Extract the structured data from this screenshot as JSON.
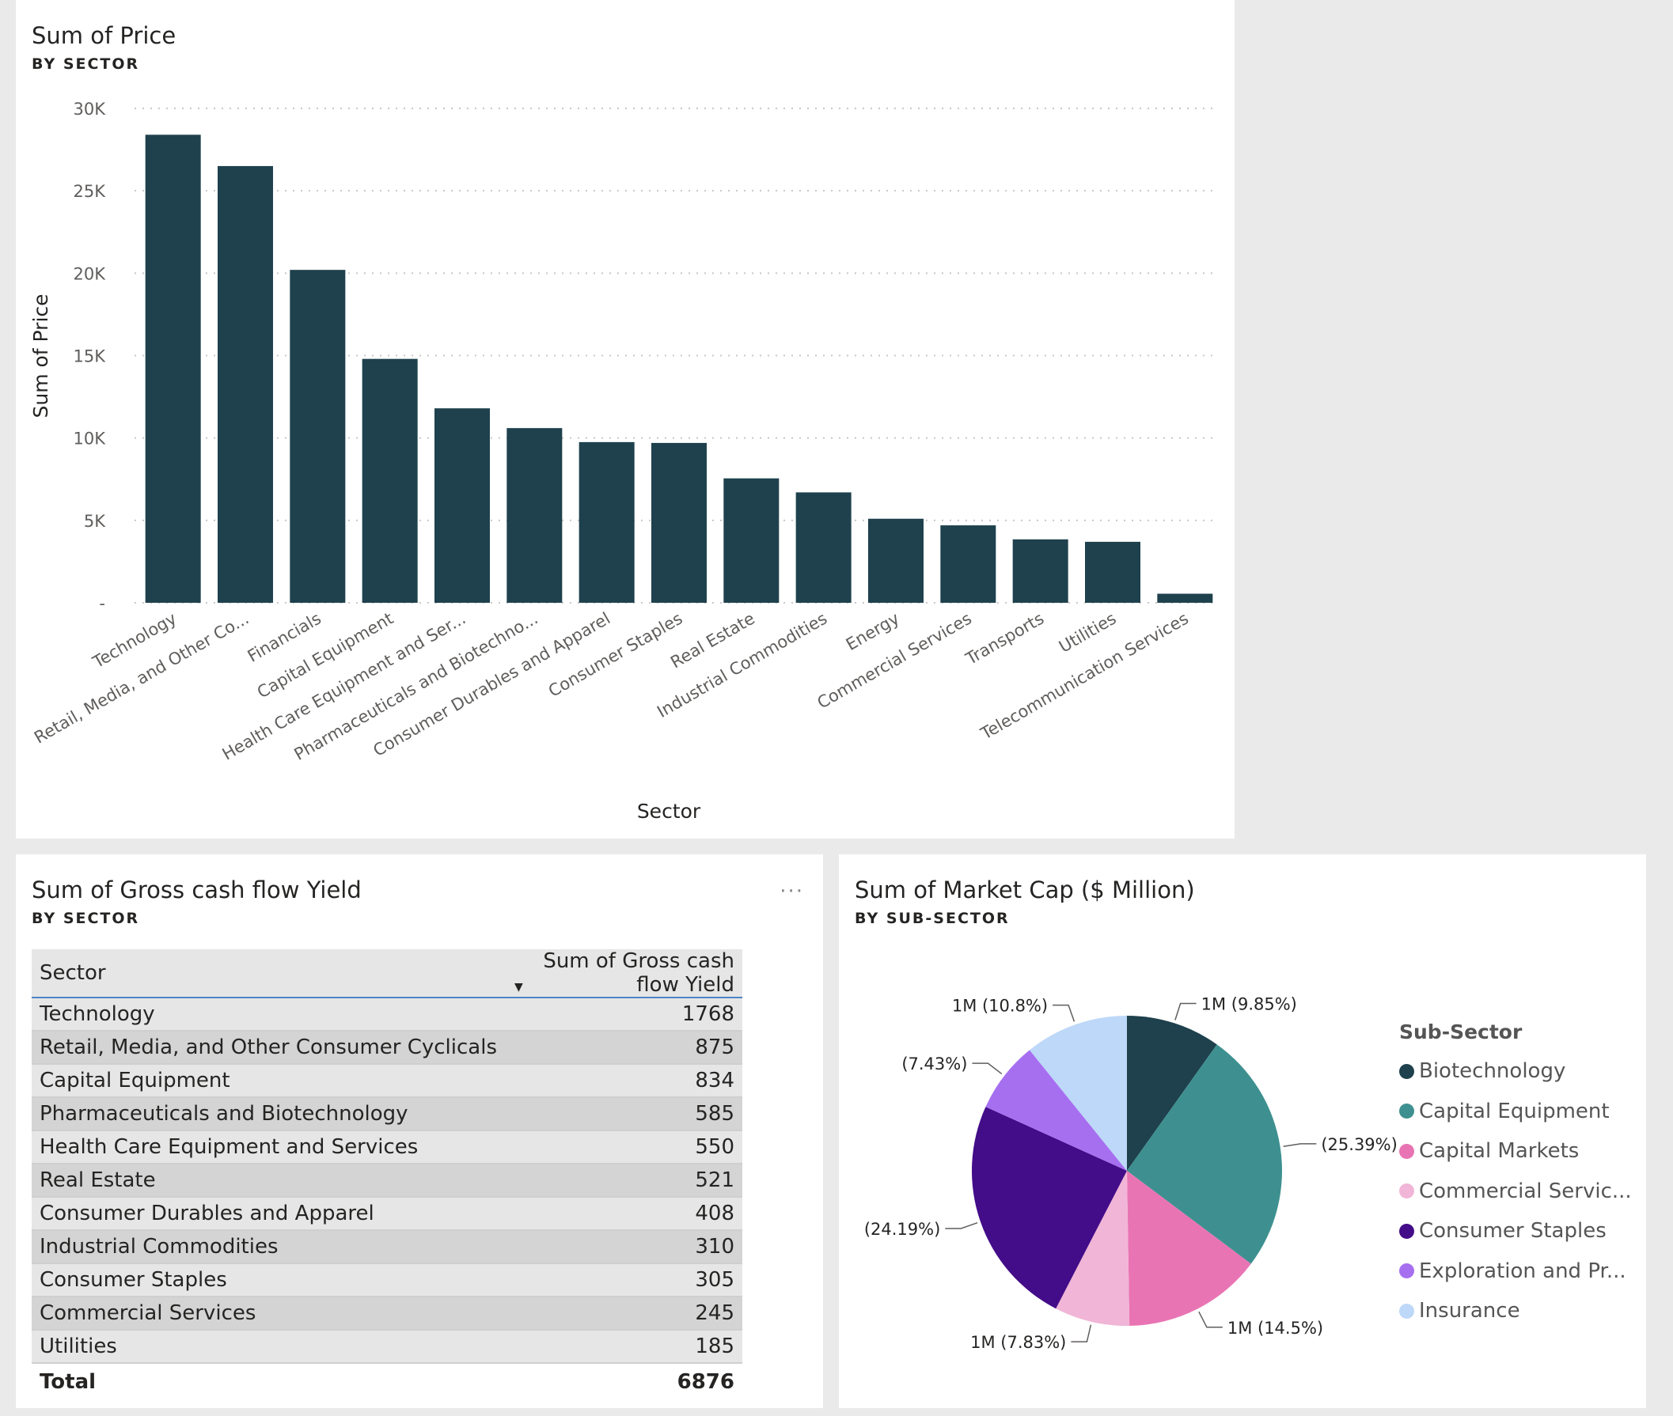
{
  "bar_card": {
    "title": "Sum of Price",
    "subtitle": "BY SECTOR"
  },
  "table_card": {
    "title": "Sum of Gross cash flow Yield",
    "subtitle": "BY SECTOR",
    "more_label": "···",
    "columns": [
      "Sector",
      "Sum of Gross cash flow Yield"
    ],
    "rows": [
      {
        "sector": "Technology",
        "value": "1768"
      },
      {
        "sector": "Retail, Media, and Other Consumer Cyclicals",
        "value": "875"
      },
      {
        "sector": "Capital Equipment",
        "value": "834"
      },
      {
        "sector": "Pharmaceuticals and Biotechnology",
        "value": "585"
      },
      {
        "sector": "Health Care Equipment and Services",
        "value": "550"
      },
      {
        "sector": "Real Estate",
        "value": "521"
      },
      {
        "sector": "Consumer Durables and Apparel",
        "value": "408"
      },
      {
        "sector": "Industrial Commodities",
        "value": "310"
      },
      {
        "sector": "Consumer Staples",
        "value": "305"
      },
      {
        "sector": "Commercial Services",
        "value": "245"
      },
      {
        "sector": "Utilities",
        "value": "185"
      }
    ],
    "total_label": "Total",
    "total_value": "6876"
  },
  "pie_card": {
    "title": "Sum of Market Cap ($ Million)",
    "subtitle": "BY SUB-SECTOR"
  },
  "chart_data": [
    {
      "type": "bar",
      "title": "Sum of Price",
      "subtitle": "BY SECTOR",
      "xlabel": "Sector",
      "ylabel": "Sum of Price",
      "ylim": [
        0,
        30000
      ],
      "yticks": [
        0,
        5000,
        10000,
        15000,
        20000,
        25000,
        30000
      ],
      "ytick_labels": [
        "-",
        "5K",
        "10K",
        "15K",
        "20K",
        "25K",
        "30K"
      ],
      "grid": true,
      "bar_color": "#1e414d",
      "categories": [
        "Technology",
        "Retail, Media, and Other Co...",
        "Financials",
        "Capital Equipment",
        "Health Care Equipment and Ser...",
        "Pharmaceuticals and Biotechno...",
        "Consumer Durables and Apparel",
        "Consumer Staples",
        "Real Estate",
        "Industrial Commodities",
        "Energy",
        "Commercial Services",
        "Transports",
        "Utilities",
        "Telecommunication Services"
      ],
      "values": [
        28400,
        26500,
        20200,
        14800,
        11800,
        10600,
        9750,
        9700,
        7550,
        6700,
        5100,
        4700,
        3850,
        3700,
        550
      ]
    },
    {
      "type": "pie",
      "title": "Sum of Market Cap ($ Million)",
      "subtitle": "BY SUB-SECTOR",
      "legend_title": "Sub-Sector",
      "legend_position": "right",
      "labels": [
        "Biotechnology",
        "Capital Equipment",
        "Capital Markets",
        "Commercial Servic...",
        "Consumer Staples",
        "Exploration and Pr...",
        "Insurance"
      ],
      "values": [
        9.85,
        25.39,
        14.5,
        7.83,
        24.19,
        7.43,
        10.8
      ],
      "data_labels": [
        "1M (9.85%)",
        "(25.39%)",
        "1M (14.5%)",
        "1M (7.83%)",
        "(24.19%)",
        "(7.43%)",
        "1M (10.8%)"
      ],
      "colors": [
        "#1e414d",
        "#3e9090",
        "#e974b3",
        "#f1b5d7",
        "#430c88",
        "#a66ff0",
        "#bdd8f8"
      ]
    }
  ]
}
